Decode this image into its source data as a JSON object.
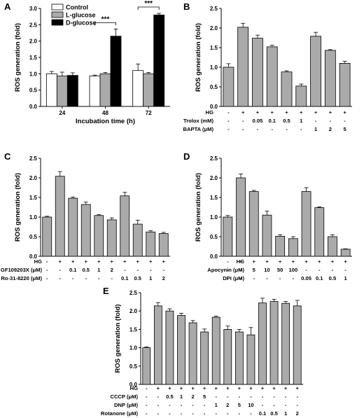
{
  "chart_data": [
    {
      "panel": "A",
      "type": "bar",
      "ylabel": "ROS generation (fold)",
      "xlabel": "Incubation time (h)",
      "ylim": [
        0,
        3.0
      ],
      "yticks": [
        "0.0",
        "0.5",
        "1.0",
        "1.5",
        "2.0",
        "2.5",
        "3.0"
      ],
      "categories": [
        "24",
        "48",
        "72"
      ],
      "legend": {
        "position": "top-left",
        "entries": [
          {
            "name": "Control",
            "color": "#ffffff"
          },
          {
            "name": "L-glucose",
            "color": "#aaaaaa"
          },
          {
            "name": "D-glucose",
            "color": "#000000"
          }
        ]
      },
      "series": [
        {
          "name": "Control",
          "values": [
            1.0,
            0.93,
            1.1
          ],
          "errors": [
            0.07,
            0.03,
            0.2
          ]
        },
        {
          "name": "L-glucose",
          "values": [
            0.93,
            1.0,
            1.0
          ],
          "errors": [
            0.12,
            0.04,
            0.04
          ]
        },
        {
          "name": "D-glucose",
          "values": [
            0.95,
            2.15,
            2.8
          ],
          "errors": [
            0.08,
            0.22,
            0.05
          ]
        }
      ],
      "significance": [
        {
          "category": "48",
          "label": "***"
        },
        {
          "category": "72",
          "label": "***"
        }
      ]
    },
    {
      "panel": "B",
      "type": "bar",
      "ylabel": "ROS generation (fold)",
      "ylim": [
        0,
        2.5
      ],
      "yticks": [
        "0.0",
        "0.5",
        "1.0",
        "1.5",
        "2.0",
        "2.5"
      ],
      "values": [
        1.0,
        2.02,
        1.74,
        1.52,
        0.88,
        0.52,
        1.79,
        1.43,
        1.1
      ],
      "errors": [
        0.09,
        0.1,
        0.08,
        0.04,
        0.03,
        0.05,
        0.1,
        0.02,
        0.05
      ],
      "conditions": [
        {
          "label": "HG",
          "values": [
            "-",
            "+",
            "+",
            "+",
            "+",
            "+",
            "+",
            "+",
            "+"
          ]
        },
        {
          "label": "Trolox (mM)",
          "values": [
            "-",
            "-",
            "0.05",
            "0.1",
            "0.5",
            "1",
            "-",
            "-",
            "-"
          ]
        },
        {
          "label": "BAPTA (μM)",
          "values": [
            "-",
            "-",
            "-",
            "-",
            "-",
            "-",
            "1",
            "2",
            "5"
          ]
        }
      ]
    },
    {
      "panel": "C",
      "type": "bar",
      "ylabel": "ROS generation (fold)",
      "ylim": [
        0,
        2.5
      ],
      "yticks": [
        "0.0",
        "0.5",
        "1.0",
        "1.5",
        "2.0",
        "2.5"
      ],
      "values": [
        1.0,
        2.04,
        1.48,
        1.32,
        1.04,
        0.93,
        1.54,
        0.82,
        0.62,
        0.58
      ],
      "errors": [
        0.02,
        0.12,
        0.03,
        0.06,
        0.02,
        0.05,
        0.09,
        0.1,
        0.03,
        0.03
      ],
      "conditions": [
        {
          "label": "HG",
          "values": [
            "-",
            "+",
            "+",
            "+",
            "+",
            "+",
            "+",
            "+",
            "+",
            "+"
          ]
        },
        {
          "label": "GF109203X (μM)",
          "values": [
            "-",
            "-",
            "0.1",
            "0.5",
            "1",
            "2",
            "-",
            "-",
            "-",
            "-"
          ]
        },
        {
          "label": "Ro-31-8220 (μM)",
          "values": [
            "-",
            "-",
            "-",
            "-",
            "-",
            "-",
            "0.1",
            "0.5",
            "1",
            "2"
          ]
        }
      ]
    },
    {
      "panel": "D",
      "type": "bar",
      "ylabel": "ROS generation (fold)",
      "ylim": [
        0,
        2.5
      ],
      "yticks": [
        "0.0",
        "0.5",
        "1.0",
        "1.5",
        "2.0",
        "2.5"
      ],
      "values": [
        1.0,
        2.0,
        1.65,
        1.05,
        0.51,
        0.45,
        1.65,
        1.24,
        0.5,
        0.18
      ],
      "errors": [
        0.04,
        0.1,
        0.03,
        0.1,
        0.04,
        0.05,
        0.1,
        0.02,
        0.05,
        0.01
      ],
      "conditions": [
        {
          "label": "HG",
          "values": [
            "-",
            "+",
            "+",
            "+",
            "+",
            "+",
            "+",
            "+",
            "+",
            "+"
          ]
        },
        {
          "label": "Apocynin (μM)",
          "values": [
            "-",
            "-",
            "5",
            "10",
            "50",
            "100",
            "-",
            "-",
            "-",
            "-"
          ]
        },
        {
          "label": "DPI (μM)",
          "values": [
            "-",
            "-",
            "-",
            "-",
            "-",
            "-",
            "0.05",
            "0.1",
            "0.5",
            "1"
          ]
        }
      ]
    },
    {
      "panel": "E",
      "type": "bar",
      "ylabel": "ROS generation (fold)",
      "ylim": [
        0,
        2.5
      ],
      "yticks": [
        "0.0",
        "0.5",
        "1.0",
        "1.5",
        "2.0",
        "2.5"
      ],
      "values": [
        1.0,
        2.14,
        2.0,
        1.88,
        1.68,
        1.43,
        1.83,
        1.5,
        1.43,
        1.35,
        2.22,
        2.26,
        2.21,
        2.14
      ],
      "errors": [
        0.02,
        0.09,
        0.06,
        0.06,
        0.06,
        0.08,
        0.03,
        0.09,
        0.07,
        0.2,
        0.13,
        0.06,
        0.05,
        0.15
      ],
      "conditions": [
        {
          "label": "HG",
          "values": [
            "-",
            "+",
            "+",
            "+",
            "+",
            "+",
            "+",
            "+",
            "+",
            "+",
            "+",
            "+",
            "+",
            "+"
          ]
        },
        {
          "label": "CCCP (μM)",
          "values": [
            "-",
            "-",
            "0.5",
            "1",
            "2",
            "5",
            "-",
            "-",
            "-",
            "-",
            "-",
            "-",
            "-",
            "-"
          ]
        },
        {
          "label": "DNP (μM)",
          "values": [
            "-",
            "-",
            "-",
            "-",
            "-",
            "-",
            "1",
            "2",
            "5",
            "10",
            "-",
            "-",
            "-",
            "-"
          ]
        },
        {
          "label": "Rotanone (μM)",
          "values": [
            "-",
            "-",
            "-",
            "-",
            "-",
            "-",
            "-",
            "-",
            "-",
            "-",
            "0.1",
            "0.5",
            "1",
            "2"
          ]
        }
      ]
    }
  ],
  "colors": {
    "bar_gray": "#aaaaaa",
    "bar_black": "#000000",
    "bar_white": "#ffffff",
    "axis": "#000000"
  }
}
